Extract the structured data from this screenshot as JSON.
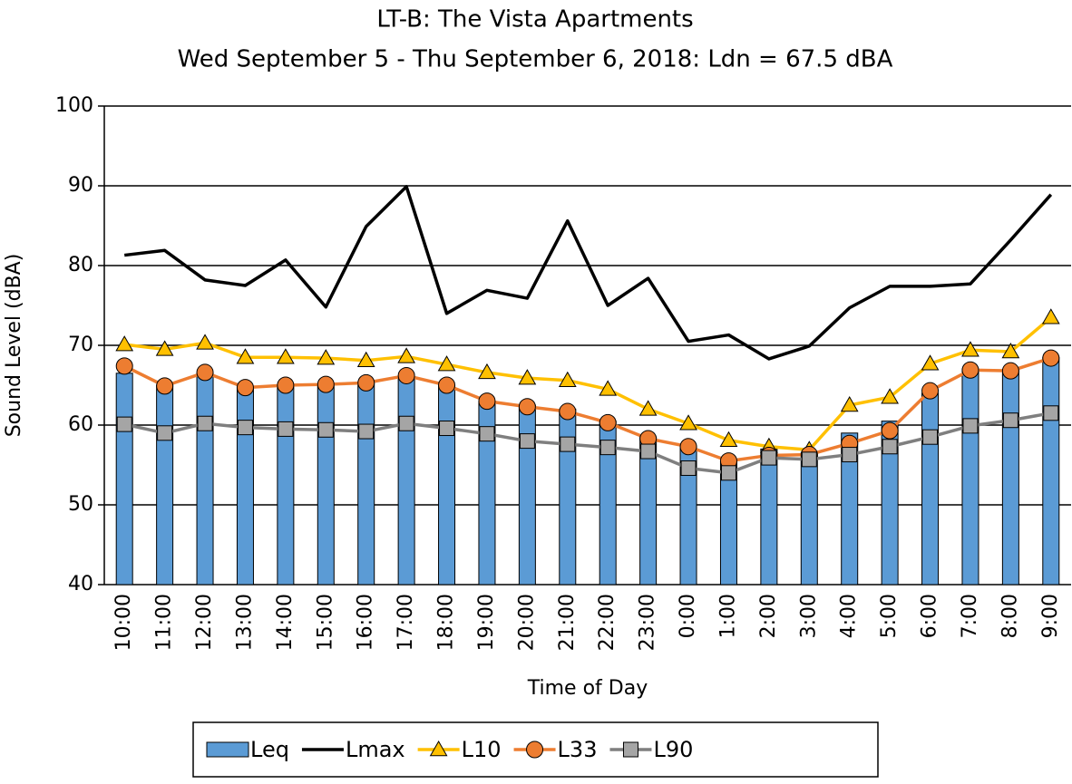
{
  "chart_data": {
    "type": "combo",
    "title": "LT-B: The Vista Apartments",
    "subtitle": "Wed September 5 - Thu September 6, 2018: Ldn = 67.5 dBA",
    "x_label": "Time of Day",
    "y_label": "Sound Level (dBA)",
    "categories": [
      "10:00",
      "11:00",
      "12:00",
      "13:00",
      "14:00",
      "15:00",
      "16:00",
      "17:00",
      "18:00",
      "19:00",
      "20:00",
      "21:00",
      "22:00",
      "23:00",
      "0:00",
      "1:00",
      "2:00",
      "3:00",
      "4:00",
      "5:00",
      "6:00",
      "7:00",
      "8:00",
      "9:00"
    ],
    "ylim": [
      40,
      100
    ],
    "yticks": [
      40,
      50,
      60,
      70,
      80,
      90,
      100
    ],
    "grid": true,
    "legend": "bottom",
    "series": [
      {
        "name": "Leq",
        "type": "bar",
        "color": "#5b9bd5",
        "values": [
          66.5,
          65,
          66.5,
          64.8,
          65,
          65,
          65.3,
          66,
          65,
          63,
          62.5,
          62,
          60.5,
          58.5,
          57.3,
          55.5,
          57,
          56.5,
          59,
          60.5,
          64,
          67,
          67,
          68.5
        ]
      },
      {
        "name": "Lmax",
        "type": "line",
        "color": "#000000",
        "values": [
          81.3,
          81.9,
          78.2,
          77.5,
          80.7,
          74.8,
          84.9,
          89.9,
          74,
          76.9,
          75.9,
          85.6,
          75,
          78.4,
          70.5,
          71.3,
          68.3,
          69.9,
          74.7,
          77.4,
          77.4,
          77.7,
          83.2,
          88.9
        ]
      },
      {
        "name": "L10",
        "type": "line",
        "color": "#ffc000",
        "marker": "triangle",
        "values": [
          70.1,
          69.5,
          70.3,
          68.5,
          68.5,
          68.4,
          68.1,
          68.6,
          67.6,
          66.6,
          65.9,
          65.6,
          64.5,
          62,
          60.2,
          58.1,
          57.3,
          56.9,
          62.5,
          63.5,
          67.7,
          69.4,
          69.2,
          73.5
        ]
      },
      {
        "name": "L33",
        "type": "line",
        "color": "#ed7d31",
        "marker": "circle",
        "values": [
          67.4,
          64.9,
          66.6,
          64.7,
          65,
          65.1,
          65.3,
          66.2,
          65,
          63,
          62.3,
          61.7,
          60.3,
          58.3,
          57.3,
          55.5,
          56.2,
          56.3,
          57.7,
          59.3,
          64.3,
          66.9,
          66.8,
          68.4
        ]
      },
      {
        "name": "L90",
        "type": "line",
        "color": "#7f7f7f",
        "marker": "square",
        "values": [
          60.1,
          59,
          60.2,
          59.7,
          59.5,
          59.4,
          59.2,
          60.2,
          59.6,
          58.9,
          58,
          57.6,
          57.2,
          56.7,
          54.6,
          54,
          55.9,
          55.7,
          56.3,
          57.3,
          58.5,
          59.9,
          60.6,
          61.5
        ]
      }
    ]
  }
}
